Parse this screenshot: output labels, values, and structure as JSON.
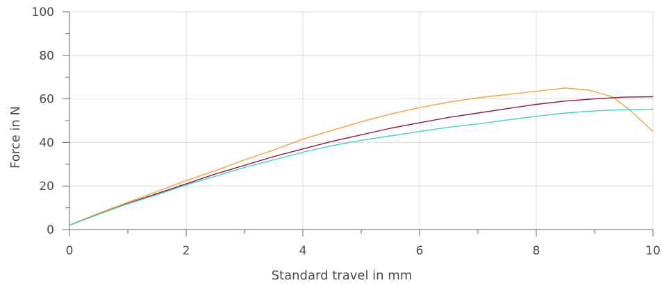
{
  "chart_data": {
    "type": "line",
    "xlabel": "Standard travel in mm",
    "ylabel": "Force in N",
    "xlim": [
      0,
      10
    ],
    "ylim": [
      0,
      100
    ],
    "x_ticks": [
      "0",
      "2",
      "4",
      "6",
      "8",
      "10"
    ],
    "y_ticks": [
      "0",
      "20",
      "40",
      "60",
      "80",
      "100"
    ],
    "grid": true,
    "legend": "none",
    "series": [
      {
        "color": "#f5a03c",
        "points": [
          [
            0,
            2
          ],
          [
            0.5,
            7.5
          ],
          [
            1,
            12.5
          ],
          [
            1.5,
            17.5
          ],
          [
            2,
            22.5
          ],
          [
            2.5,
            27
          ],
          [
            3,
            32
          ],
          [
            3.5,
            36.5
          ],
          [
            4,
            41.5
          ],
          [
            4.5,
            45.5
          ],
          [
            5,
            49.5
          ],
          [
            5.5,
            53
          ],
          [
            6,
            56
          ],
          [
            6.5,
            58.5
          ],
          [
            7,
            60.5
          ],
          [
            7.5,
            62
          ],
          [
            8,
            63.5
          ],
          [
            8.5,
            65
          ],
          [
            8.9,
            64
          ],
          [
            9.3,
            61
          ],
          [
            9.6,
            55
          ],
          [
            9.8,
            50
          ],
          [
            10,
            45
          ]
        ]
      },
      {
        "color": "#8b1a3c",
        "points": [
          [
            0,
            2
          ],
          [
            0.5,
            7
          ],
          [
            1,
            12
          ],
          [
            1.5,
            16.5
          ],
          [
            2,
            21
          ],
          [
            2.5,
            25.5
          ],
          [
            3,
            29.5
          ],
          [
            3.5,
            33.5
          ],
          [
            4,
            37
          ],
          [
            4.5,
            40.5
          ],
          [
            5,
            43.5
          ],
          [
            5.5,
            46.5
          ],
          [
            6,
            49
          ],
          [
            6.5,
            51.5
          ],
          [
            7,
            53.5
          ],
          [
            7.5,
            55.5
          ],
          [
            8,
            57.5
          ],
          [
            8.5,
            59
          ],
          [
            9,
            60
          ],
          [
            9.5,
            60.8
          ],
          [
            10,
            61
          ]
        ]
      },
      {
        "color": "#3fd1c0",
        "points": [
          [
            0,
            2
          ],
          [
            0.5,
            7
          ],
          [
            1,
            11.8
          ],
          [
            1.5,
            16
          ],
          [
            2,
            20.5
          ],
          [
            2.5,
            24.5
          ],
          [
            3,
            28.5
          ],
          [
            3.5,
            32
          ],
          [
            4,
            35.5
          ],
          [
            4.5,
            38.5
          ],
          [
            5,
            41
          ],
          [
            5.5,
            43
          ],
          [
            6,
            45
          ],
          [
            6.5,
            47
          ],
          [
            7,
            48.5
          ],
          [
            7.5,
            50.3
          ],
          [
            8,
            52
          ],
          [
            8.5,
            53.5
          ],
          [
            9,
            54.5
          ],
          [
            9.5,
            55
          ],
          [
            10,
            55.3
          ]
        ]
      }
    ]
  }
}
